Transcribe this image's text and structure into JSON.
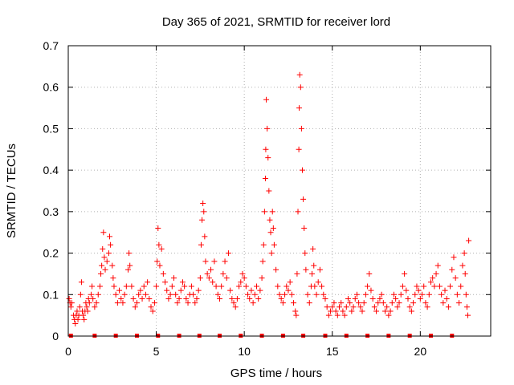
{
  "chart_data": {
    "type": "scatter",
    "title": "Day 365 of 2021, SRMTID for receiver lord",
    "xlabel": "GPS time / hours",
    "ylabel": "SRMTID / TECUs",
    "xlim": [
      0,
      24
    ],
    "ylim": [
      0,
      0.7
    ],
    "x_ticks": [
      0,
      5,
      10,
      15,
      20
    ],
    "x_tick_labels": [
      "0",
      "5",
      "10",
      "15",
      "20"
    ],
    "y_ticks": [
      0,
      0.1,
      0.2,
      0.3,
      0.4,
      0.5,
      0.6,
      0.7
    ],
    "y_tick_labels": [
      "0",
      "0.1",
      "0.2",
      "0.3",
      "0.4",
      "0.5",
      "0.6",
      "0.7"
    ],
    "grid": true,
    "marker": "+",
    "color": "#ff0000",
    "series": [
      {
        "name": "SRMTID",
        "points": [
          [
            0.05,
            0.09
          ],
          [
            0.1,
            0.08
          ],
          [
            0.15,
            0.07
          ],
          [
            0.2,
            0.08
          ],
          [
            0.3,
            0.05
          ],
          [
            0.35,
            0.04
          ],
          [
            0.4,
            0.03
          ],
          [
            0.45,
            0.05
          ],
          [
            0.5,
            0.06
          ],
          [
            0.55,
            0.04
          ],
          [
            0.6,
            0.05
          ],
          [
            0.65,
            0.07
          ],
          [
            0.7,
            0.1
          ],
          [
            0.75,
            0.13
          ],
          [
            0.8,
            0.06
          ],
          [
            0.85,
            0.05
          ],
          [
            0.9,
            0.04
          ],
          [
            0.95,
            0.06
          ],
          [
            1.0,
            0.08
          ],
          [
            1.05,
            0.07
          ],
          [
            1.1,
            0.06
          ],
          [
            1.15,
            0.09
          ],
          [
            1.2,
            0.08
          ],
          [
            1.3,
            0.1
          ],
          [
            1.35,
            0.12
          ],
          [
            1.4,
            0.09
          ],
          [
            1.5,
            0.07
          ],
          [
            1.6,
            0.08
          ],
          [
            1.7,
            0.1
          ],
          [
            1.8,
            0.12
          ],
          [
            1.85,
            0.15
          ],
          [
            1.9,
            0.17
          ],
          [
            1.95,
            0.21
          ],
          [
            2.0,
            0.25
          ],
          [
            2.05,
            0.19
          ],
          [
            2.1,
            0.16
          ],
          [
            2.2,
            0.18
          ],
          [
            2.3,
            0.2
          ],
          [
            2.35,
            0.24
          ],
          [
            2.4,
            0.22
          ],
          [
            2.5,
            0.17
          ],
          [
            2.55,
            0.14
          ],
          [
            2.6,
            0.12
          ],
          [
            2.7,
            0.1
          ],
          [
            2.8,
            0.08
          ],
          [
            2.9,
            0.11
          ],
          [
            3.0,
            0.09
          ],
          [
            3.1,
            0.08
          ],
          [
            3.2,
            0.1
          ],
          [
            3.3,
            0.12
          ],
          [
            3.4,
            0.16
          ],
          [
            3.45,
            0.2
          ],
          [
            3.5,
            0.17
          ],
          [
            3.6,
            0.12
          ],
          [
            3.7,
            0.09
          ],
          [
            3.8,
            0.07
          ],
          [
            3.9,
            0.08
          ],
          [
            4.0,
            0.1
          ],
          [
            4.1,
            0.11
          ],
          [
            4.2,
            0.09
          ],
          [
            4.3,
            0.12
          ],
          [
            4.4,
            0.1
          ],
          [
            4.5,
            0.13
          ],
          [
            4.6,
            0.09
          ],
          [
            4.7,
            0.07
          ],
          [
            4.8,
            0.06
          ],
          [
            4.9,
            0.08
          ],
          [
            5.0,
            0.12
          ],
          [
            5.05,
            0.18
          ],
          [
            5.1,
            0.26
          ],
          [
            5.15,
            0.22
          ],
          [
            5.2,
            0.17
          ],
          [
            5.3,
            0.21
          ],
          [
            5.4,
            0.15
          ],
          [
            5.5,
            0.13
          ],
          [
            5.6,
            0.11
          ],
          [
            5.7,
            0.09
          ],
          [
            5.8,
            0.1
          ],
          [
            5.9,
            0.12
          ],
          [
            6.0,
            0.14
          ],
          [
            6.1,
            0.1
          ],
          [
            6.2,
            0.08
          ],
          [
            6.3,
            0.09
          ],
          [
            6.4,
            0.11
          ],
          [
            6.5,
            0.13
          ],
          [
            6.6,
            0.12
          ],
          [
            6.7,
            0.09
          ],
          [
            6.8,
            0.08
          ],
          [
            6.9,
            0.1
          ],
          [
            7.0,
            0.12
          ],
          [
            7.1,
            0.1
          ],
          [
            7.2,
            0.08
          ],
          [
            7.3,
            0.09
          ],
          [
            7.4,
            0.11
          ],
          [
            7.5,
            0.14
          ],
          [
            7.55,
            0.22
          ],
          [
            7.6,
            0.28
          ],
          [
            7.65,
            0.32
          ],
          [
            7.7,
            0.3
          ],
          [
            7.75,
            0.24
          ],
          [
            7.8,
            0.18
          ],
          [
            7.9,
            0.15
          ],
          [
            8.0,
            0.14
          ],
          [
            8.1,
            0.16
          ],
          [
            8.2,
            0.13
          ],
          [
            8.3,
            0.18
          ],
          [
            8.4,
            0.12
          ],
          [
            8.5,
            0.1
          ],
          [
            8.6,
            0.09
          ],
          [
            8.7,
            0.12
          ],
          [
            8.8,
            0.15
          ],
          [
            8.9,
            0.18
          ],
          [
            9.0,
            0.14
          ],
          [
            9.1,
            0.2
          ],
          [
            9.2,
            0.11
          ],
          [
            9.3,
            0.09
          ],
          [
            9.4,
            0.08
          ],
          [
            9.5,
            0.07
          ],
          [
            9.6,
            0.09
          ],
          [
            9.7,
            0.12
          ],
          [
            9.8,
            0.13
          ],
          [
            9.9,
            0.15
          ],
          [
            10.0,
            0.14
          ],
          [
            10.1,
            0.12
          ],
          [
            10.2,
            0.1
          ],
          [
            10.3,
            0.09
          ],
          [
            10.4,
            0.11
          ],
          [
            10.5,
            0.08
          ],
          [
            10.6,
            0.1
          ],
          [
            10.7,
            0.12
          ],
          [
            10.8,
            0.09
          ],
          [
            10.9,
            0.11
          ],
          [
            11.0,
            0.14
          ],
          [
            11.05,
            0.18
          ],
          [
            11.1,
            0.22
          ],
          [
            11.15,
            0.3
          ],
          [
            11.2,
            0.38
          ],
          [
            11.22,
            0.45
          ],
          [
            11.25,
            0.57
          ],
          [
            11.3,
            0.5
          ],
          [
            11.35,
            0.43
          ],
          [
            11.4,
            0.35
          ],
          [
            11.45,
            0.28
          ],
          [
            11.5,
            0.25
          ],
          [
            11.55,
            0.2
          ],
          [
            11.6,
            0.3
          ],
          [
            11.65,
            0.26
          ],
          [
            11.7,
            0.22
          ],
          [
            11.8,
            0.16
          ],
          [
            11.9,
            0.12
          ],
          [
            12.0,
            0.1
          ],
          [
            12.1,
            0.09
          ],
          [
            12.2,
            0.08
          ],
          [
            12.3,
            0.1
          ],
          [
            12.4,
            0.12
          ],
          [
            12.5,
            0.11
          ],
          [
            12.6,
            0.13
          ],
          [
            12.7,
            0.1
          ],
          [
            12.8,
            0.08
          ],
          [
            12.9,
            0.06
          ],
          [
            12.95,
            0.05
          ],
          [
            13.0,
            0.15
          ],
          [
            13.05,
            0.3
          ],
          [
            13.1,
            0.45
          ],
          [
            13.12,
            0.55
          ],
          [
            13.15,
            0.63
          ],
          [
            13.2,
            0.6
          ],
          [
            13.25,
            0.5
          ],
          [
            13.3,
            0.4
          ],
          [
            13.35,
            0.33
          ],
          [
            13.4,
            0.26
          ],
          [
            13.45,
            0.2
          ],
          [
            13.5,
            0.16
          ],
          [
            13.6,
            0.1
          ],
          [
            13.7,
            0.08
          ],
          [
            13.8,
            0.12
          ],
          [
            13.85,
            0.15
          ],
          [
            13.9,
            0.21
          ],
          [
            13.95,
            0.17
          ],
          [
            14.0,
            0.12
          ],
          [
            14.1,
            0.1
          ],
          [
            14.2,
            0.13
          ],
          [
            14.3,
            0.16
          ],
          [
            14.4,
            0.12
          ],
          [
            14.5,
            0.1
          ],
          [
            14.6,
            0.09
          ],
          [
            14.7,
            0.07
          ],
          [
            14.8,
            0.05
          ],
          [
            14.9,
            0.06
          ],
          [
            15.0,
            0.07
          ],
          [
            15.1,
            0.08
          ],
          [
            15.2,
            0.06
          ],
          [
            15.3,
            0.05
          ],
          [
            15.4,
            0.07
          ],
          [
            15.5,
            0.08
          ],
          [
            15.6,
            0.06
          ],
          [
            15.7,
            0.05
          ],
          [
            15.8,
            0.07
          ],
          [
            15.9,
            0.09
          ],
          [
            16.0,
            0.08
          ],
          [
            16.1,
            0.06
          ],
          [
            16.2,
            0.07
          ],
          [
            16.3,
            0.09
          ],
          [
            16.4,
            0.1
          ],
          [
            16.5,
            0.08
          ],
          [
            16.6,
            0.07
          ],
          [
            16.7,
            0.06
          ],
          [
            16.8,
            0.08
          ],
          [
            16.9,
            0.1
          ],
          [
            17.0,
            0.12
          ],
          [
            17.1,
            0.15
          ],
          [
            17.2,
            0.11
          ],
          [
            17.3,
            0.09
          ],
          [
            17.4,
            0.07
          ],
          [
            17.5,
            0.06
          ],
          [
            17.6,
            0.08
          ],
          [
            17.7,
            0.09
          ],
          [
            17.8,
            0.1
          ],
          [
            17.9,
            0.08
          ],
          [
            18.0,
            0.06
          ],
          [
            18.1,
            0.07
          ],
          [
            18.2,
            0.05
          ],
          [
            18.3,
            0.06
          ],
          [
            18.4,
            0.08
          ],
          [
            18.5,
            0.1
          ],
          [
            18.6,
            0.09
          ],
          [
            18.7,
            0.07
          ],
          [
            18.8,
            0.08
          ],
          [
            18.9,
            0.1
          ],
          [
            19.0,
            0.12
          ],
          [
            19.1,
            0.15
          ],
          [
            19.2,
            0.11
          ],
          [
            19.3,
            0.09
          ],
          [
            19.4,
            0.07
          ],
          [
            19.5,
            0.06
          ],
          [
            19.6,
            0.08
          ],
          [
            19.7,
            0.1
          ],
          [
            19.8,
            0.12
          ],
          [
            19.9,
            0.11
          ],
          [
            20.0,
            0.09
          ],
          [
            20.1,
            0.1
          ],
          [
            20.2,
            0.12
          ],
          [
            20.3,
            0.08
          ],
          [
            20.4,
            0.07
          ],
          [
            20.5,
            0.1
          ],
          [
            20.6,
            0.13
          ],
          [
            20.7,
            0.14
          ],
          [
            20.8,
            0.12
          ],
          [
            20.9,
            0.15
          ],
          [
            21.0,
            0.17
          ],
          [
            21.1,
            0.12
          ],
          [
            21.2,
            0.1
          ],
          [
            21.3,
            0.08
          ],
          [
            21.4,
            0.11
          ],
          [
            21.5,
            0.09
          ],
          [
            21.6,
            0.07
          ],
          [
            21.7,
            0.12
          ],
          [
            21.8,
            0.16
          ],
          [
            21.9,
            0.19
          ],
          [
            22.0,
            0.14
          ],
          [
            22.1,
            0.1
          ],
          [
            22.2,
            0.08
          ],
          [
            22.3,
            0.12
          ],
          [
            22.4,
            0.17
          ],
          [
            22.5,
            0.2
          ],
          [
            22.55,
            0.15
          ],
          [
            22.6,
            0.1
          ],
          [
            22.65,
            0.07
          ],
          [
            22.7,
            0.05
          ],
          [
            22.75,
            0.23
          ]
        ]
      }
    ],
    "gap_markers": [
      0.15,
      1.5,
      2.7,
      3.9,
      5.1,
      6.3,
      7.45,
      8.6,
      9.8,
      11.0,
      12.2,
      13.35,
      14.6,
      15.8,
      17.0,
      18.2,
      19.4,
      20.6,
      21.8
    ]
  }
}
